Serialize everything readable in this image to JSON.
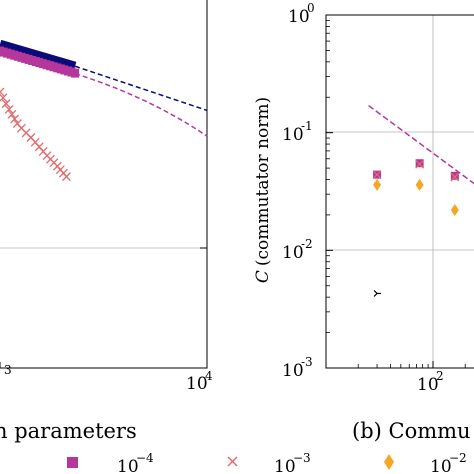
{
  "chart_data": [
    {
      "type": "line",
      "panel": "left",
      "caption": "n parameters",
      "tick_labels": [
        "3",
        "10",
        "4"
      ],
      "xscale": "log",
      "x_axis_visible": [
        800,
        10000
      ],
      "yscale": "log",
      "grid": true,
      "series": [
        {
          "color": "#0a0a7a",
          "style": "thick-solid+dashed",
          "x": [
            800,
            2000,
            10000
          ],
          "y_norm": [
            0.88,
            0.82,
            0.7
          ]
        },
        {
          "color": "#b5379b",
          "style": "square-markers+dashed",
          "x": [
            800,
            2000,
            10000
          ],
          "y_norm": [
            0.86,
            0.8,
            0.63
          ]
        },
        {
          "color": "#e06a6a",
          "style": "x-markers",
          "x": [
            800,
            900,
            1000,
            1200,
            1400,
            1600,
            1800
          ],
          "y_norm": [
            0.75,
            0.7,
            0.66,
            0.62,
            0.58,
            0.55,
            0.52
          ]
        }
      ]
    },
    {
      "type": "scatter",
      "panel": "right",
      "caption": "(b) Commu",
      "ylabel_italic": "C",
      "ylabel": "(commutator norm)",
      "xscale": "log",
      "yscale": "log",
      "ylim": [
        0.001,
        1
      ],
      "y_ticks": [
        {
          "base": "10",
          "exp": "0"
        },
        {
          "base": "10",
          "exp": "-1"
        },
        {
          "base": "10",
          "exp": "-2"
        },
        {
          "base": "10",
          "exp": "-3"
        }
      ],
      "x_tick": {
        "base": "10",
        "exp": "2"
      },
      "grid": true,
      "series": [
        {
          "marker": "dashed-line",
          "color": "#b5379b",
          "x": [
            25,
            300
          ],
          "y": [
            0.17,
            0.032
          ]
        },
        {
          "marker": "square",
          "color": "#b5379b",
          "x": [
            30,
            75,
            160
          ],
          "y": [
            0.044,
            0.055,
            0.043
          ]
        },
        {
          "marker": "x",
          "color": "#e06a6a",
          "x": [
            30,
            75,
            160
          ],
          "y": [
            0.044,
            0.054,
            0.042
          ]
        },
        {
          "marker": "diamond",
          "color": "#f5a623",
          "x": [
            30,
            75,
            160
          ],
          "y": [
            0.036,
            0.036,
            0.022
          ]
        },
        {
          "marker": "tri",
          "color": "#000000",
          "x": [
            30
          ],
          "y": [
            0.0043
          ]
        }
      ]
    }
  ],
  "legend": {
    "items": [
      {
        "marker": "square",
        "color": "#b5379b",
        "base": "10",
        "exp": "−4"
      },
      {
        "marker": "x",
        "color": "#e06a6a",
        "base": "10",
        "exp": "−3"
      },
      {
        "marker": "diamond",
        "color": "#f5a623",
        "base": "10",
        "exp": "−2"
      }
    ]
  }
}
